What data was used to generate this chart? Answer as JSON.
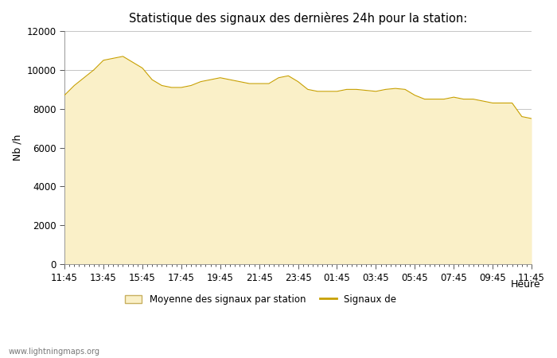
{
  "title": "Statistique des signaux des dernières 24h pour la station:",
  "xlabel": "Heure",
  "ylabel": "Nb /h",
  "fill_color": "#FAF0C8",
  "line_color": "#C8A000",
  "bg_color": "#FFFFFF",
  "plot_bg_color": "#FFFFFF",
  "grid_color": "#BBBBBB",
  "ylim": [
    0,
    12000
  ],
  "yticks": [
    0,
    2000,
    4000,
    6000,
    8000,
    10000,
    12000
  ],
  "xtick_labels": [
    "11:45",
    "13:45",
    "15:45",
    "17:45",
    "19:45",
    "21:45",
    "23:45",
    "01:45",
    "03:45",
    "05:45",
    "07:45",
    "09:45",
    "11:45"
  ],
  "legend_fill_label": "Moyenne des signaux par station",
  "legend_line_label": "Signaux de",
  "watermark": "www.lightningmaps.org",
  "x_values": [
    0,
    1,
    2,
    3,
    4,
    5,
    6,
    7,
    8,
    9,
    10,
    11,
    12,
    13,
    14,
    15,
    16,
    17,
    18,
    19,
    20,
    21,
    22,
    23,
    24,
    25,
    26,
    27,
    28,
    29,
    30,
    31,
    32,
    33,
    34,
    35,
    36,
    37,
    38,
    39,
    40,
    41,
    42,
    43,
    44,
    45,
    46,
    47,
    48
  ],
  "y_values": [
    8700,
    9200,
    9600,
    10000,
    10500,
    10600,
    10700,
    10400,
    10100,
    9500,
    9200,
    9100,
    9100,
    9200,
    9400,
    9500,
    9600,
    9500,
    9400,
    9300,
    9300,
    9300,
    9600,
    9700,
    9400,
    9000,
    8900,
    8900,
    8900,
    9000,
    9000,
    8950,
    8900,
    9000,
    9050,
    9000,
    8700,
    8500,
    8500,
    8500,
    8600,
    8500,
    8500,
    8400,
    8300,
    8300,
    8300,
    7600,
    7500
  ]
}
